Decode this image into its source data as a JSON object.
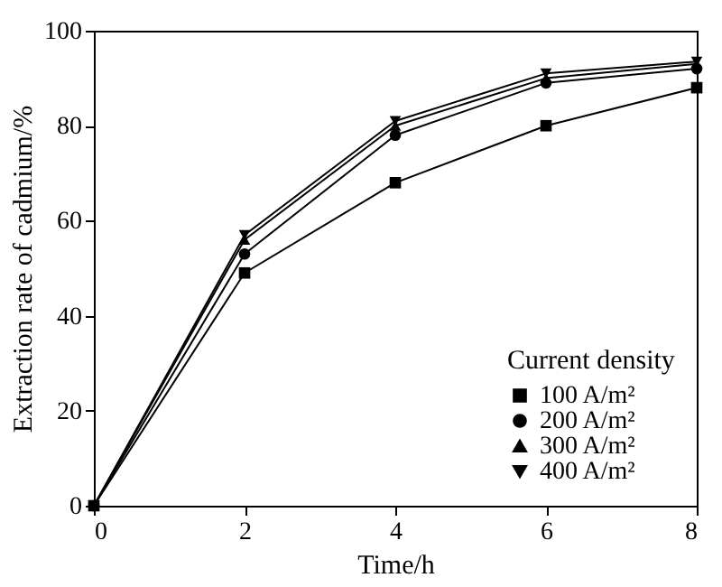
{
  "chart_data": {
    "type": "line",
    "xlabel": "Time/h",
    "ylabel": "Extraction rate of cadmium/%",
    "legend_title": "Current density",
    "x": [
      0,
      2,
      4,
      6,
      8
    ],
    "series": [
      {
        "name": "100 A/m²",
        "color": "#000000",
        "marker": "square",
        "values": [
          0,
          49,
          68,
          80,
          88
        ]
      },
      {
        "name": "200 A/m²",
        "color": "#000000",
        "marker": "circle",
        "values": [
          0,
          53,
          78,
          89,
          92
        ]
      },
      {
        "name": "300 A/m²",
        "color": "#000000",
        "marker": "triangle",
        "values": [
          0,
          56,
          80,
          90,
          93
        ]
      },
      {
        "name": "400 A/m²",
        "color": "#000000",
        "marker": "triangle-down",
        "values": [
          0,
          57,
          81,
          91,
          93.5
        ]
      }
    ],
    "xlim": [
      0,
      8
    ],
    "xticks": [
      0,
      2,
      4,
      6,
      8
    ],
    "ylim": [
      0,
      100
    ],
    "yticks": [
      0,
      20,
      40,
      60,
      80,
      100
    ],
    "grid": false,
    "legend": "bottom right",
    "line_style": "solid"
  }
}
